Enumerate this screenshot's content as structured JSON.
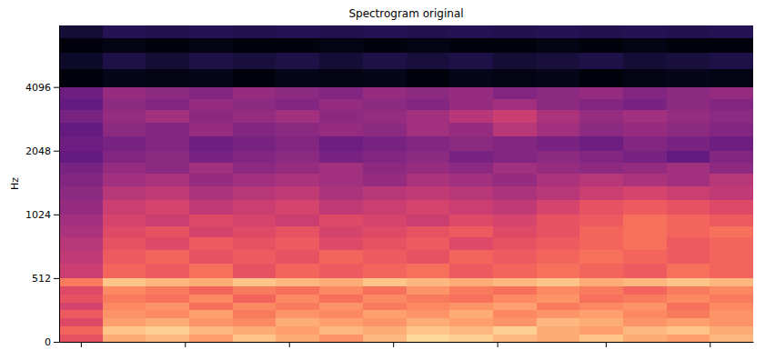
{
  "chart_data": {
    "type": "heatmap",
    "title": "Spectrogram original",
    "ylabel": "Hz",
    "log": "y",
    "color": "magma",
    "tick_labels": "y",
    "xlim": [
      0,
      16
    ],
    "xticks": [
      0.5,
      2.9,
      5.3,
      7.7,
      10.1,
      12.6,
      15
    ],
    "ylim": [
      0,
      8000
    ],
    "yticks": [
      0,
      512,
      1024,
      2048,
      4096
    ],
    "zlim": [
      -80,
      0
    ],
    "x": [
      0,
      1,
      2,
      3,
      4,
      5,
      6,
      7,
      8,
      9,
      10,
      11,
      12,
      13,
      14,
      15,
      16
    ],
    "y": [
      0,
      64,
      128,
      192,
      256,
      320,
      384,
      448,
      512,
      600,
      700,
      800,
      900,
      1024,
      1200,
      1400,
      1600,
      1800,
      2048,
      2400,
      2800,
      3200,
      3600,
      4096,
      5000,
      6000,
      7000,
      8000
    ],
    "cells": [
      [
        -30,
        -14,
        -12,
        -16,
        -10,
        -14,
        -18,
        -12,
        -6,
        -8,
        -12,
        -14,
        -10,
        -14,
        -16,
        -12
      ],
      [
        -26,
        -10,
        -8,
        -12,
        -14,
        -16,
        -12,
        -14,
        -10,
        -12,
        -8,
        -14,
        -16,
        -12,
        -10,
        -14
      ],
      [
        -32,
        -16,
        -14,
        -18,
        -20,
        -14,
        -16,
        -18,
        -14,
        -16,
        -18,
        -12,
        -14,
        -18,
        -16,
        -18
      ],
      [
        -28,
        -18,
        -20,
        -16,
        -22,
        -18,
        -20,
        -16,
        -18,
        -14,
        -20,
        -18,
        -16,
        -20,
        -22,
        -18
      ],
      [
        -34,
        -20,
        -18,
        -24,
        -20,
        -22,
        -18,
        -22,
        -20,
        -18,
        -16,
        -22,
        -20,
        -18,
        -24,
        -20
      ],
      [
        -30,
        -22,
        -24,
        -20,
        -26,
        -20,
        -24,
        -20,
        -22,
        -24,
        -20,
        -18,
        -24,
        -22,
        -20,
        -22
      ],
      [
        -32,
        -20,
        -22,
        -26,
        -22,
        -24,
        -20,
        -24,
        -18,
        -22,
        -24,
        -20,
        -22,
        -26,
        -22,
        -20
      ],
      [
        -22,
        -10,
        -12,
        -14,
        -10,
        -12,
        -14,
        -10,
        -12,
        -14,
        -12,
        -10,
        -14,
        -12,
        -10,
        -12
      ],
      [
        -36,
        -26,
        -28,
        -24,
        -30,
        -26,
        -28,
        -26,
        -24,
        -28,
        -26,
        -24,
        -26,
        -28,
        -24,
        -26
      ],
      [
        -38,
        -28,
        -26,
        -30,
        -28,
        -30,
        -26,
        -28,
        -30,
        -26,
        -28,
        -26,
        -24,
        -26,
        -28,
        -26
      ],
      [
        -40,
        -30,
        -32,
        -28,
        -30,
        -28,
        -32,
        -30,
        -28,
        -32,
        -30,
        -28,
        -26,
        -24,
        -28,
        -26
      ],
      [
        -42,
        -32,
        -30,
        -34,
        -32,
        -30,
        -34,
        -32,
        -30,
        -28,
        -32,
        -30,
        -26,
        -24,
        -26,
        -24
      ],
      [
        -44,
        -34,
        -36,
        -32,
        -34,
        -36,
        -32,
        -34,
        -36,
        -32,
        -34,
        -30,
        -28,
        -24,
        -26,
        -28
      ],
      [
        -46,
        -36,
        -34,
        -38,
        -36,
        -34,
        -38,
        -36,
        -34,
        -36,
        -38,
        -34,
        -30,
        -28,
        -30,
        -32
      ],
      [
        -48,
        -40,
        -38,
        -42,
        -40,
        -38,
        -42,
        -40,
        -38,
        -40,
        -42,
        -40,
        -36,
        -34,
        -36,
        -38
      ],
      [
        -50,
        -44,
        -42,
        -46,
        -44,
        -42,
        -44,
        -46,
        -42,
        -44,
        -46,
        -42,
        -40,
        -42,
        -44,
        -40
      ],
      [
        -52,
        -46,
        -48,
        -44,
        -48,
        -46,
        -44,
        -48,
        -46,
        -48,
        -44,
        -46,
        -48,
        -46,
        -44,
        -48
      ],
      [
        -56,
        -50,
        -48,
        -52,
        -50,
        -48,
        -52,
        -50,
        -48,
        -52,
        -50,
        -48,
        -50,
        -52,
        -56,
        -50
      ],
      [
        -54,
        -52,
        -50,
        -54,
        -52,
        -50,
        -54,
        -52,
        -50,
        -48,
        -50,
        -52,
        -54,
        -50,
        -52,
        -54
      ],
      [
        -56,
        -48,
        -50,
        -46,
        -50,
        -48,
        -46,
        -48,
        -44,
        -46,
        -40,
        -44,
        -48,
        -46,
        -48,
        -50
      ],
      [
        -52,
        -46,
        -44,
        -48,
        -46,
        -44,
        -48,
        -46,
        -44,
        -40,
        -36,
        -42,
        -46,
        -44,
        -46,
        -48
      ],
      [
        -56,
        -48,
        -50,
        -46,
        -48,
        -50,
        -46,
        -48,
        -50,
        -46,
        -44,
        -48,
        -50,
        -52,
        -48,
        -50
      ],
      [
        -54,
        -46,
        -48,
        -50,
        -46,
        -48,
        -50,
        -46,
        -48,
        -46,
        -50,
        -48,
        -46,
        -50,
        -48,
        -46
      ],
      [
        -78,
        -76,
        -77,
        -76,
        -78,
        -76,
        -77,
        -76,
        -78,
        -76,
        -77,
        -76,
        -78,
        -77,
        -76,
        -77
      ],
      [
        -74,
        -70,
        -72,
        -70,
        -71,
        -70,
        -72,
        -70,
        -71,
        -70,
        -72,
        -71,
        -70,
        -72,
        -71,
        -70
      ],
      [
        -78,
        -77,
        -78,
        -77,
        -78,
        -78,
        -77,
        -78,
        -77,
        -78,
        -78,
        -77,
        -78,
        -77,
        -78,
        -78
      ],
      [
        -72,
        -68,
        -69,
        -68,
        -69,
        -68,
        -69,
        -68,
        -69,
        -68,
        -69,
        -68,
        -69,
        -68,
        -69,
        -68
      ]
    ]
  }
}
